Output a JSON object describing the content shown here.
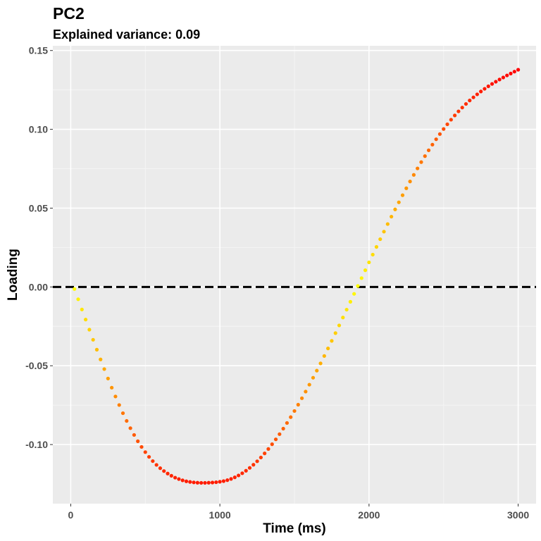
{
  "chart_data": {
    "type": "scatter",
    "title": "PC2",
    "subtitle": "Explained variance: 0.09",
    "xlabel": "Time (ms)",
    "ylabel": "Loading",
    "xlim": [
      -120,
      3120
    ],
    "ylim": [
      -0.1375,
      0.153
    ],
    "x_ticks": [
      0,
      1000,
      2000,
      3000
    ],
    "x_tick_labels": [
      "0",
      "1000",
      "2000",
      "3000"
    ],
    "y_ticks": [
      -0.1,
      -0.05,
      0.0,
      0.05,
      0.1,
      0.15
    ],
    "y_tick_labels": [
      "-0.10",
      "-0.05",
      "0.00",
      "0.05",
      "0.10",
      "0.15"
    ],
    "grid": true,
    "reference_line": {
      "y": 0,
      "style": "dashed",
      "color": "#000000"
    },
    "colors": {
      "panel_background": "#ebebeb",
      "grid_major": "#ffffff",
      "grid_minor": "#f5f5f5",
      "low_magnitude": "#ffff00",
      "mid_magnitude": "#ff8c00",
      "high_magnitude": "#ff0000"
    },
    "series": [
      {
        "color_encoding": "absolute loading (yellow = near zero, red = largest magnitude)",
        "points": [
          [
            25,
            -0.0013
          ],
          [
            50,
            -0.0078
          ],
          [
            75,
            -0.0143
          ],
          [
            100,
            -0.0207
          ],
          [
            125,
            -0.0271
          ],
          [
            150,
            -0.0335
          ],
          [
            175,
            -0.0398
          ],
          [
            200,
            -0.046
          ],
          [
            225,
            -0.0521
          ],
          [
            250,
            -0.0581
          ],
          [
            275,
            -0.0639
          ],
          [
            300,
            -0.0695
          ],
          [
            325,
            -0.0749
          ],
          [
            350,
            -0.0801
          ],
          [
            375,
            -0.085
          ],
          [
            400,
            -0.0896
          ],
          [
            425,
            -0.0939
          ],
          [
            450,
            -0.0979
          ],
          [
            475,
            -0.1015
          ],
          [
            500,
            -0.1048
          ],
          [
            525,
            -0.1078
          ],
          [
            550,
            -0.1105
          ],
          [
            575,
            -0.1129
          ],
          [
            600,
            -0.115
          ],
          [
            625,
            -0.1168
          ],
          [
            650,
            -0.1184
          ],
          [
            675,
            -0.1198
          ],
          [
            700,
            -0.121
          ],
          [
            725,
            -0.1219
          ],
          [
            750,
            -0.1227
          ],
          [
            775,
            -0.1233
          ],
          [
            800,
            -0.1237
          ],
          [
            825,
            -0.124
          ],
          [
            850,
            -0.1242
          ],
          [
            875,
            -0.1243
          ],
          [
            900,
            -0.1243
          ],
          [
            925,
            -0.1242
          ],
          [
            950,
            -0.1241
          ],
          [
            975,
            -0.1239
          ],
          [
            1000,
            -0.1236
          ],
          [
            1025,
            -0.1232
          ],
          [
            1050,
            -0.1226
          ],
          [
            1075,
            -0.1218
          ],
          [
            1100,
            -0.1208
          ],
          [
            1125,
            -0.1196
          ],
          [
            1150,
            -0.1182
          ],
          [
            1175,
            -0.1166
          ],
          [
            1200,
            -0.1148
          ],
          [
            1225,
            -0.1128
          ],
          [
            1250,
            -0.1106
          ],
          [
            1275,
            -0.1082
          ],
          [
            1300,
            -0.1056
          ],
          [
            1325,
            -0.1028
          ],
          [
            1350,
            -0.0998
          ],
          [
            1375,
            -0.0967
          ],
          [
            1400,
            -0.0934
          ],
          [
            1425,
            -0.0899
          ],
          [
            1450,
            -0.0863
          ],
          [
            1475,
            -0.0826
          ],
          [
            1500,
            -0.0787
          ],
          [
            1525,
            -0.0747
          ],
          [
            1550,
            -0.0706
          ],
          [
            1575,
            -0.0664
          ],
          [
            1600,
            -0.062
          ],
          [
            1625,
            -0.0576
          ],
          [
            1650,
            -0.0531
          ],
          [
            1675,
            -0.0485
          ],
          [
            1700,
            -0.0438
          ],
          [
            1725,
            -0.039
          ],
          [
            1750,
            -0.0342
          ],
          [
            1775,
            -0.0293
          ],
          [
            1800,
            -0.0244
          ],
          [
            1825,
            -0.0194
          ],
          [
            1850,
            -0.0144
          ],
          [
            1875,
            -0.0094
          ],
          [
            1900,
            -0.0044
          ],
          [
            1925,
            0.0006
          ],
          [
            1950,
            0.0056
          ],
          [
            1975,
            0.0106
          ],
          [
            2000,
            0.0156
          ],
          [
            2025,
            0.0205
          ],
          [
            2050,
            0.0254
          ],
          [
            2075,
            0.0303
          ],
          [
            2100,
            0.0351
          ],
          [
            2125,
            0.0399
          ],
          [
            2150,
            0.0446
          ],
          [
            2175,
            0.0492
          ],
          [
            2200,
            0.0537
          ],
          [
            2225,
            0.0582
          ],
          [
            2250,
            0.0626
          ],
          [
            2275,
            0.0669
          ],
          [
            2300,
            0.0711
          ],
          [
            2325,
            0.0752
          ],
          [
            2350,
            0.0792
          ],
          [
            2375,
            0.083
          ],
          [
            2400,
            0.0867
          ],
          [
            2425,
            0.0903
          ],
          [
            2450,
            0.0937
          ],
          [
            2475,
            0.097
          ],
          [
            2500,
            0.1002
          ],
          [
            2525,
            0.1032
          ],
          [
            2550,
            0.1061
          ],
          [
            2575,
            0.1088
          ],
          [
            2600,
            0.1114
          ],
          [
            2625,
            0.1138
          ],
          [
            2650,
            0.1161
          ],
          [
            2675,
            0.1183
          ],
          [
            2700,
            0.1203
          ],
          [
            2725,
            0.1222
          ],
          [
            2750,
            0.124
          ],
          [
            2775,
            0.1257
          ],
          [
            2800,
            0.1273
          ],
          [
            2825,
            0.1288
          ],
          [
            2850,
            0.1302
          ],
          [
            2875,
            0.1316
          ],
          [
            2900,
            0.1329
          ],
          [
            2925,
            0.1342
          ],
          [
            2950,
            0.1354
          ],
          [
            2975,
            0.1366
          ],
          [
            3000,
            0.1378
          ]
        ]
      }
    ]
  }
}
